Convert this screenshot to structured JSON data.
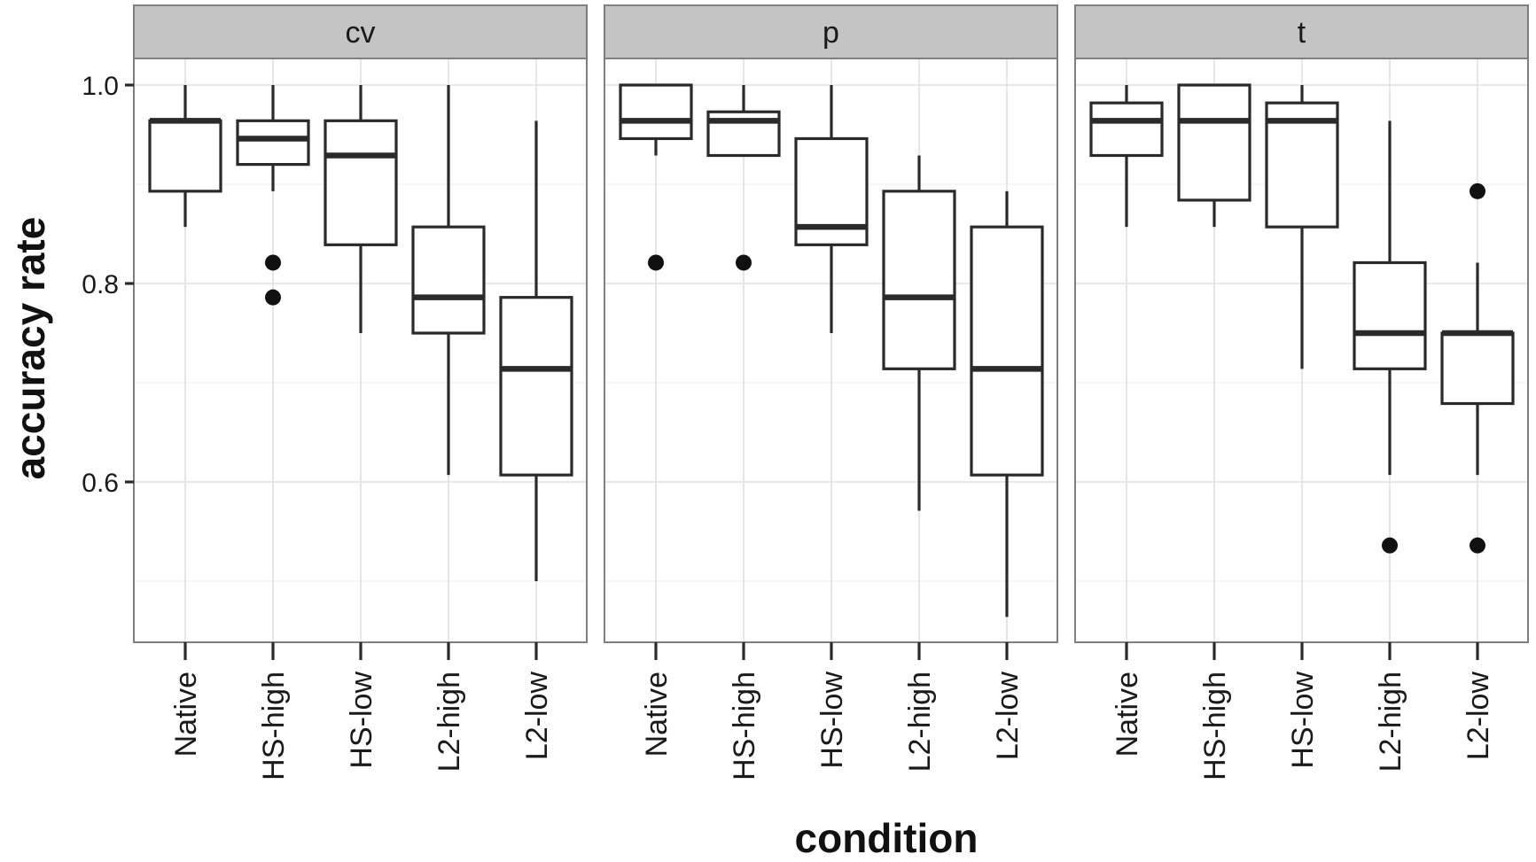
{
  "chart_data": {
    "type": "box",
    "xlabel": "condition",
    "ylabel": "accuracy rate",
    "ylim": [
      0.44,
      1.03
    ],
    "yticks": [
      0.6,
      0.8,
      1.0
    ],
    "ytick_labels": [
      "0.6",
      "0.8",
      "1.0"
    ],
    "minor_grid": [
      0.5,
      0.7,
      0.9
    ],
    "categories": [
      "Native",
      "HS-high",
      "HS-low",
      "L2-high",
      "L2-low"
    ],
    "colors": {
      "strip": "#c4c4c4",
      "grid": "#e0e0e0",
      "ink": "#2a2a2a"
    },
    "facets": [
      {
        "label": "cv",
        "boxes": [
          {
            "category": "Native",
            "min": 0.857,
            "q1": 0.893,
            "median": 0.964,
            "q3": 0.964,
            "max": 1.0,
            "outliers": []
          },
          {
            "category": "HS-high",
            "min": 0.893,
            "q1": 0.92,
            "median": 0.946,
            "q3": 0.964,
            "max": 1.0,
            "outliers": [
              0.821,
              0.786
            ]
          },
          {
            "category": "HS-low",
            "min": 0.75,
            "q1": 0.839,
            "median": 0.929,
            "q3": 0.964,
            "max": 1.0,
            "outliers": []
          },
          {
            "category": "L2-high",
            "min": 0.607,
            "q1": 0.75,
            "median": 0.786,
            "q3": 0.857,
            "max": 1.0,
            "outliers": []
          },
          {
            "category": "L2-low",
            "min": 0.5,
            "q1": 0.607,
            "median": 0.714,
            "q3": 0.786,
            "max": 0.964,
            "outliers": []
          }
        ]
      },
      {
        "label": "p",
        "boxes": [
          {
            "category": "Native",
            "min": 0.929,
            "q1": 0.946,
            "median": 0.964,
            "q3": 1.0,
            "max": 1.0,
            "outliers": [
              0.821
            ]
          },
          {
            "category": "HS-high",
            "min": 0.929,
            "q1": 0.929,
            "median": 0.964,
            "q3": 0.973,
            "max": 1.0,
            "outliers": [
              0.821
            ]
          },
          {
            "category": "HS-low",
            "min": 0.75,
            "q1": 0.839,
            "median": 0.857,
            "q3": 0.946,
            "max": 1.0,
            "outliers": []
          },
          {
            "category": "L2-high",
            "min": 0.571,
            "q1": 0.714,
            "median": 0.786,
            "q3": 0.893,
            "max": 0.929,
            "outliers": []
          },
          {
            "category": "L2-low",
            "min": 0.464,
            "q1": 0.607,
            "median": 0.714,
            "q3": 0.857,
            "max": 0.893,
            "outliers": []
          }
        ]
      },
      {
        "label": "t",
        "boxes": [
          {
            "category": "Native",
            "min": 0.857,
            "q1": 0.929,
            "median": 0.964,
            "q3": 0.982,
            "max": 1.0,
            "outliers": []
          },
          {
            "category": "HS-high",
            "min": 0.857,
            "q1": 0.884,
            "median": 0.964,
            "q3": 1.0,
            "max": 1.0,
            "outliers": []
          },
          {
            "category": "HS-low",
            "min": 0.714,
            "q1": 0.857,
            "median": 0.964,
            "q3": 0.982,
            "max": 1.0,
            "outliers": []
          },
          {
            "category": "L2-high",
            "min": 0.607,
            "q1": 0.714,
            "median": 0.75,
            "q3": 0.821,
            "max": 0.964,
            "outliers": [
              0.536
            ]
          },
          {
            "category": "L2-low",
            "min": 0.607,
            "q1": 0.679,
            "median": 0.75,
            "q3": 0.75,
            "max": 0.821,
            "outliers": [
              0.893,
              0.536
            ]
          }
        ]
      }
    ]
  }
}
